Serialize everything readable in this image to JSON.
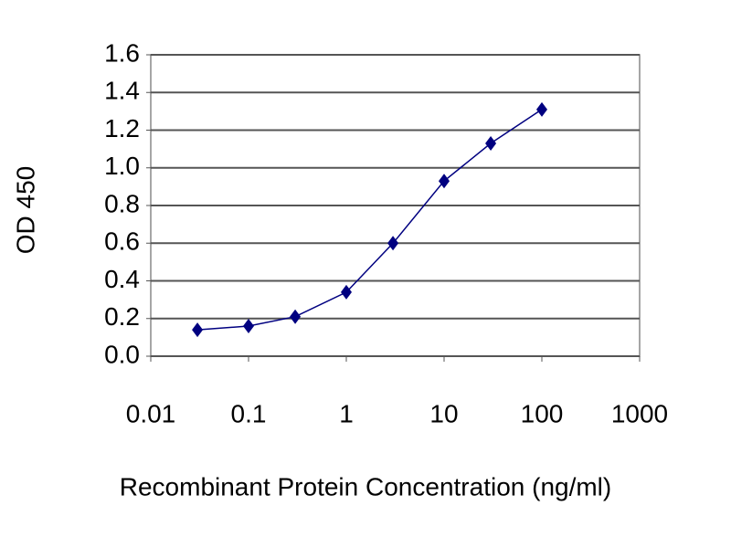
{
  "chart_data": {
    "type": "line",
    "x_label": "Recombinant Protein Concentration (ng/ml)",
    "y_label": "OD 450",
    "x": [
      0.03,
      0.1,
      0.3,
      1,
      3,
      10,
      30,
      100
    ],
    "series": [
      {
        "color": "#000080",
        "values": [
          0.14,
          0.16,
          0.21,
          0.34,
          0.6,
          0.93,
          1.13,
          1.31
        ]
      }
    ],
    "xscale": "log",
    "xlim": [
      0.01,
      1000
    ],
    "xticks": [
      0.01,
      0.1,
      1,
      10,
      100,
      1000
    ],
    "ylim": [
      0,
      1.6
    ],
    "yticks": [
      {
        "value": 0,
        "label": "0.0"
      },
      0.2,
      0.4,
      0.6,
      0.8,
      {
        "value": 1,
        "label": "1.0"
      },
      1.2,
      1.4,
      1.6
    ],
    "grid": true
  }
}
